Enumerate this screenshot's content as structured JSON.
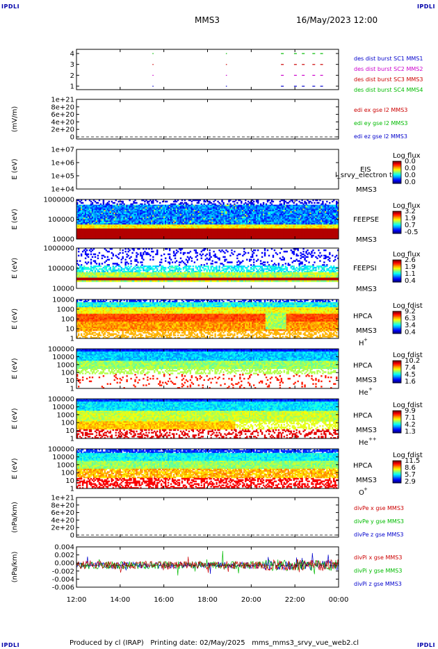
{
  "corner_label": "IPDLI",
  "header": {
    "spacecraft": "MMS3",
    "datetime": "16/May/2023 12:00"
  },
  "footer": {
    "text": "Produced by cl (IRAP)   Printing date: 02/May/2025   mms_mms3_srvy_vue_web2.cl"
  },
  "x_axis": {
    "tick_labels": [
      "12:00",
      "14:00",
      "16:00",
      "18:00",
      "20:00",
      "22:00",
      "00:00"
    ]
  },
  "chart_data": [
    {
      "type": "scatter",
      "id": "burst",
      "yticks": [
        "4",
        "3",
        "2",
        "1"
      ],
      "legend": [
        {
          "text": "des dist burst SC1 MMS1",
          "color": "#0000cc"
        },
        {
          "text": "des dist burst SC2 MMS2",
          "color": "#cc00cc"
        },
        {
          "text": "des dist burst SC3 MMS3",
          "color": "#cc0000"
        },
        {
          "text": "des dist burst SC4 MMS4",
          "color": "#00bb00"
        }
      ]
    },
    {
      "type": "line",
      "id": "edi",
      "ylabel": "(mV/m)",
      "yticks": [
        "1e+21",
        "8e+20",
        "6e+20",
        "4e+20",
        "2e+20",
        "0"
      ],
      "legend": [
        {
          "text": "edi ex gse l2 MMS3",
          "color": "#cc0000"
        },
        {
          "text": "edi ey gse l2 MMS3",
          "color": "#00bb00"
        },
        {
          "text": "edi ez gse l2 MMS3",
          "color": "#0000cc"
        }
      ]
    },
    {
      "type": "heatmap",
      "id": "eis",
      "ylabel": "E (eV)",
      "yticks": [
        "1e+07",
        "1e+06",
        "1e+05",
        "1e+04"
      ],
      "instrument": "EIS",
      "spacecraft": "MMS3",
      "overlay_text": "l_srvy_electron to",
      "colorbar_title": "Log flux",
      "colorbar_ticks": [
        "0.0",
        "0.0",
        "0.0",
        "0.0"
      ]
    },
    {
      "type": "heatmap",
      "id": "feepse",
      "ylabel": "E (eV)",
      "yticks": [
        "1000000",
        "100000",
        "10000"
      ],
      "instrument": "FEEPSE",
      "spacecraft": "MMS3",
      "colorbar_title": "Log flux",
      "colorbar_ticks": [
        "3.2",
        "1.9",
        "0.7",
        "-0.5"
      ]
    },
    {
      "type": "heatmap",
      "id": "feepsi",
      "ylabel": "E (eV)",
      "yticks": [
        "1000000",
        "100000",
        "10000"
      ],
      "instrument": "FEEPSI",
      "spacecraft": "MMS3",
      "colorbar_title": "Log flux",
      "colorbar_ticks": [
        "2.6",
        "1.9",
        "1.1",
        "0.4"
      ]
    },
    {
      "type": "heatmap",
      "id": "hpca_h",
      "ylabel": "E (eV)",
      "yticks": [
        "10000",
        "1000",
        "100",
        "10",
        "1"
      ],
      "instrument": "HPCA",
      "spacecraft": "MMS3",
      "species": "H",
      "species_sup": "+",
      "colorbar_title": "Log fdist",
      "colorbar_ticks": [
        "9.2",
        "6.3",
        "3.4",
        "0.4"
      ]
    },
    {
      "type": "heatmap",
      "id": "hpca_he",
      "ylabel": "E (eV)",
      "yticks": [
        "100000",
        "10000",
        "1000",
        "100",
        "10",
        "1"
      ],
      "instrument": "HPCA",
      "spacecraft": "MMS3",
      "species": "He",
      "species_sup": "+",
      "colorbar_title": "Log fdist",
      "colorbar_ticks": [
        "10.2",
        "7.4",
        "4.5",
        "1.6"
      ]
    },
    {
      "type": "heatmap",
      "id": "hpca_hepp",
      "ylabel": "E (eV)",
      "yticks": [
        "100000",
        "10000",
        "1000",
        "100",
        "10",
        "1"
      ],
      "instrument": "HPCA",
      "spacecraft": "MMS3",
      "species": "He",
      "species_sup": "++",
      "colorbar_title": "Log fdist",
      "colorbar_ticks": [
        "9.9",
        "7.1",
        "4.2",
        "1.3"
      ]
    },
    {
      "type": "heatmap",
      "id": "hpca_o",
      "ylabel": "E (eV)",
      "yticks": [
        "100000",
        "10000",
        "1000",
        "100",
        "10",
        "1"
      ],
      "instrument": "HPCA",
      "spacecraft": "MMS3",
      "species": "O",
      "species_sup": "+",
      "colorbar_title": "Log fdist",
      "colorbar_ticks": [
        "11.5",
        "8.6",
        "5.7",
        "2.9"
      ]
    },
    {
      "type": "line",
      "id": "divpe",
      "ylabel": "(nPa/km)",
      "yticks": [
        "1e+21",
        "8e+20",
        "6e+20",
        "4e+20",
        "2e+20",
        "0"
      ],
      "legend": [
        {
          "text": "divPe x gse MMS3",
          "color": "#cc0000"
        },
        {
          "text": "divPe y gse MMS3",
          "color": "#00bb00"
        },
        {
          "text": "divPe z gse MMS3",
          "color": "#0000cc"
        }
      ]
    },
    {
      "type": "line",
      "id": "divpi",
      "ylabel": "(nPa/km)",
      "yticks": [
        "0.004",
        "0.002",
        "0.000",
        "-0.002",
        "-0.004",
        "-0.006"
      ],
      "yrange": [
        -0.006,
        0.005
      ],
      "legend": [
        {
          "text": "divPi x gse MMS3",
          "color": "#cc0000"
        },
        {
          "text": "divPi y gse MMS3",
          "color": "#00bb00"
        },
        {
          "text": "divPi z gse MMS3",
          "color": "#0000cc"
        }
      ]
    }
  ]
}
